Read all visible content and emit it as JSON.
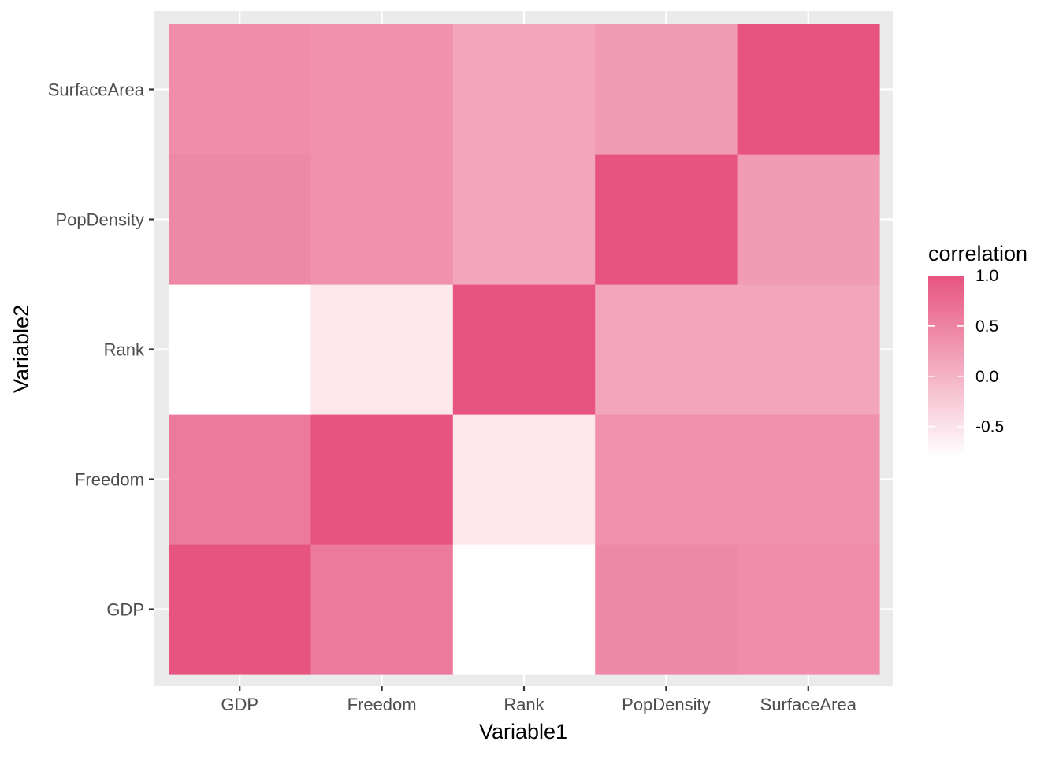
{
  "chart_data": {
    "type": "heatmap",
    "title": "",
    "xlabel": "Variable1",
    "ylabel": "Variable2",
    "x_categories": [
      "GDP",
      "Freedom",
      "Rank",
      "PopDensity",
      "SurfaceArea"
    ],
    "y_categories": [
      "GDP",
      "Freedom",
      "Rank",
      "PopDensity",
      "SurfaceArea"
    ],
    "values": [
      [
        1.0,
        0.6,
        -0.8,
        0.45,
        0.4
      ],
      [
        0.6,
        1.0,
        -0.55,
        0.35,
        0.35
      ],
      [
        -0.8,
        -0.55,
        1.0,
        0.15,
        0.15
      ],
      [
        0.45,
        0.35,
        0.15,
        1.0,
        0.25
      ],
      [
        0.4,
        0.35,
        0.15,
        0.25,
        1.0
      ]
    ],
    "legend": {
      "title": "correlation",
      "placement": "right",
      "ticks": [
        1.0,
        0.5,
        0.0,
        -0.5
      ],
      "tick_labels": [
        "1.0",
        "0.5",
        "0.0",
        "-0.5"
      ],
      "range": [
        -0.8,
        1.0
      ]
    },
    "colors": {
      "low": "#ffffff",
      "high": "#e75480",
      "panel_background": "#ebebeb",
      "grid": "#ffffff"
    },
    "grid": true
  }
}
